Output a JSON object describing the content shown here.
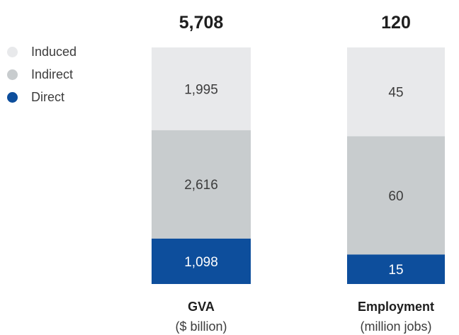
{
  "colors": {
    "direct": "#0d4e9c",
    "indirect": "#c8ccce",
    "induced": "#e8e9eb",
    "text_dark": "#3c3c3c",
    "text_light": "#ffffff",
    "title": "#1e1e1e"
  },
  "legend": {
    "items": [
      {
        "label": "Induced",
        "color": "#e8e9eb"
      },
      {
        "label": "Indirect",
        "color": "#c8ccce"
      },
      {
        "label": "Direct",
        "color": "#0d4e9c"
      }
    ]
  },
  "chart_data": [
    {
      "type": "bar",
      "stacked": true,
      "title": "5,708",
      "xlabel": "GVA",
      "unit": "($ billion)",
      "segments": [
        {
          "name": "Direct",
          "value": 1098,
          "label": "1,098"
        },
        {
          "name": "Indirect",
          "value": 2616,
          "label": "2,616"
        },
        {
          "name": "Induced",
          "value": 1995,
          "label": "1,995"
        }
      ]
    },
    {
      "type": "bar",
      "stacked": true,
      "title": "120",
      "xlabel": "Employment",
      "unit": "(million jobs)",
      "segments": [
        {
          "name": "Direct",
          "value": 15,
          "label": "15"
        },
        {
          "name": "Indirect",
          "value": 60,
          "label": "60"
        },
        {
          "name": "Induced",
          "value": 45,
          "label": "45"
        }
      ]
    }
  ]
}
